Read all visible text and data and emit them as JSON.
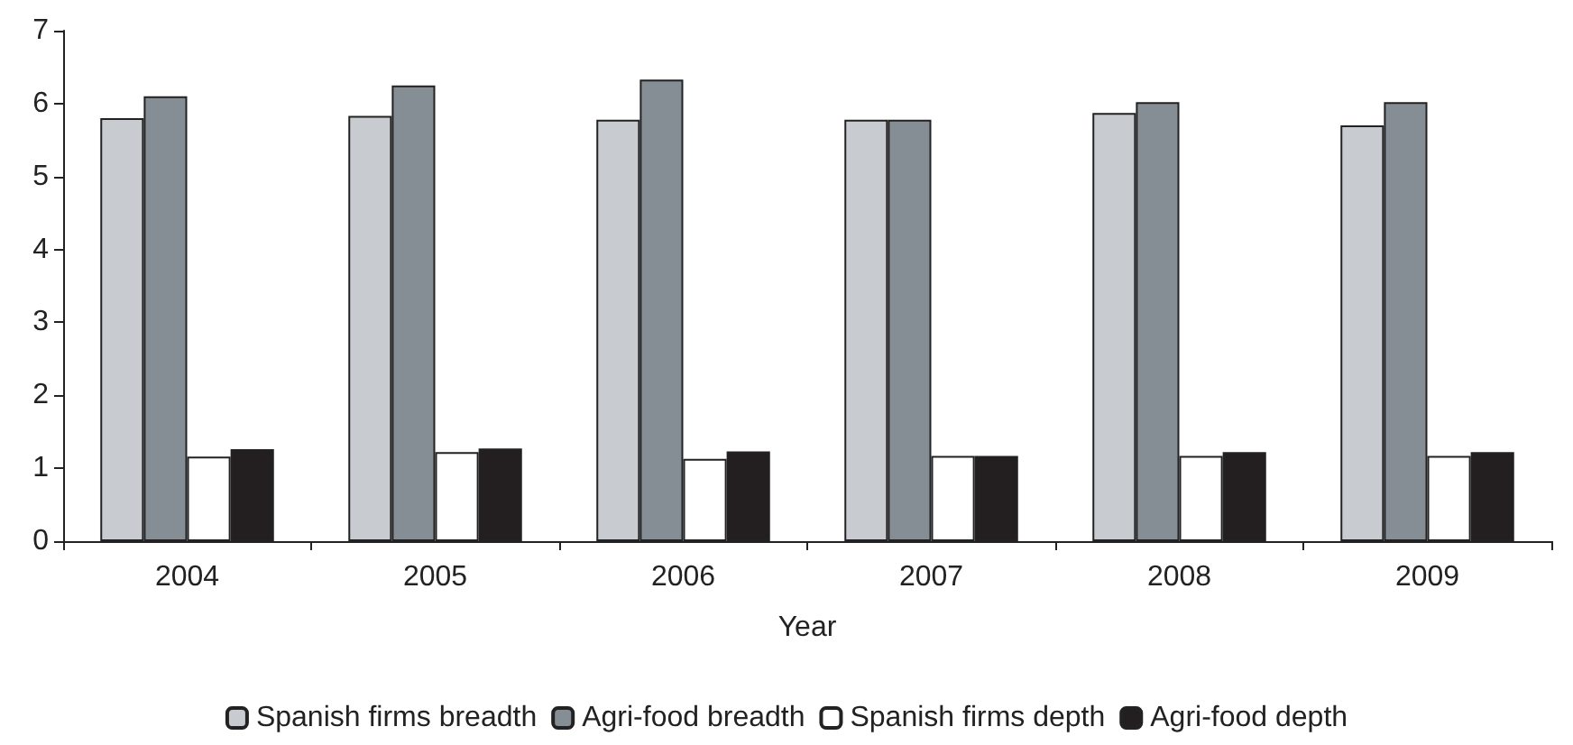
{
  "chart_data": {
    "type": "bar",
    "xlabel": "Year",
    "categories": [
      "2004",
      "2005",
      "2006",
      "2007",
      "2008",
      "2009"
    ],
    "series": [
      {
        "name": "Spanish firms breadth",
        "color": "#c8cbd0",
        "values": [
          5.8,
          5.83,
          5.78,
          5.78,
          5.87,
          5.7
        ]
      },
      {
        "name": "Agri-food breadth",
        "color": "#858d95",
        "values": [
          6.1,
          6.25,
          6.33,
          5.78,
          6.02,
          6.02
        ]
      },
      {
        "name": "Spanish firms depth",
        "color": "#ffffff",
        "values": [
          1.16,
          1.22,
          1.13,
          1.17,
          1.17,
          1.17
        ]
      },
      {
        "name": "Agri-food depth",
        "color": "#231f20",
        "values": [
          1.26,
          1.27,
          1.23,
          1.17,
          1.22,
          1.22
        ]
      }
    ],
    "ylim": [
      0,
      7
    ],
    "yticks": [
      0,
      1,
      2,
      3,
      4,
      5,
      6,
      7
    ],
    "grid": false,
    "legend": "bottom"
  }
}
